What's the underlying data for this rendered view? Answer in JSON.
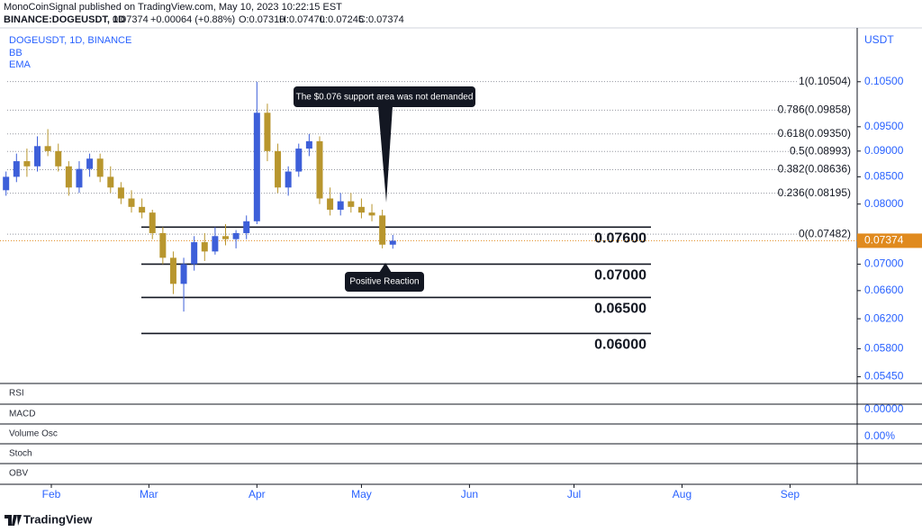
{
  "chart_data": {
    "type": "candlestick",
    "publisher": "MonoCoinSignal published on TradingView.com, May 10, 2023 10:22:15 EST",
    "symbol": "BINANCE:DOGEUSDT, 1D",
    "last": "0.07374",
    "change": "+0.00064 (+0.88%)",
    "ohlc": [
      "O:0.07310",
      "H:0.07470",
      "L:0.07245",
      "C:0.07374"
    ],
    "title": "DOGEUSDT, 1D, BINANCE",
    "overlays": [
      "BB",
      "EMA"
    ],
    "y_unit": "USDT",
    "log_scale": true,
    "up_color": "#3d5fd9",
    "down_color": "#b8962e",
    "x": [
      "2023-01-16",
      "2023-01-19",
      "2023-01-22",
      "2023-01-25",
      "2023-01-28",
      "2023-01-31",
      "2023-02-03",
      "2023-02-06",
      "2023-02-09",
      "2023-02-12",
      "2023-02-15",
      "2023-02-18",
      "2023-02-21",
      "2023-02-24",
      "2023-02-27",
      "2023-03-02",
      "2023-03-05",
      "2023-03-08",
      "2023-03-11",
      "2023-03-14",
      "2023-03-17",
      "2023-03-20",
      "2023-03-23",
      "2023-03-26",
      "2023-03-29",
      "2023-04-01",
      "2023-04-04",
      "2023-04-07",
      "2023-04-10",
      "2023-04-13",
      "2023-04-16",
      "2023-04-19",
      "2023-04-22",
      "2023-04-25",
      "2023-04-28",
      "2023-05-01",
      "2023-05-04",
      "2023-05-07",
      "2023-05-10"
    ],
    "open": [
      0.081,
      0.0825,
      0.085,
      0.088,
      0.087,
      0.091,
      0.09,
      0.087,
      0.083,
      0.0865,
      0.0885,
      0.085,
      0.083,
      0.081,
      0.0795,
      0.0785,
      0.075,
      0.071,
      0.067,
      0.07,
      0.0735,
      0.072,
      0.0745,
      0.074,
      0.075,
      0.077,
      0.098,
      0.09,
      0.083,
      0.086,
      0.0905,
      0.092,
      0.081,
      0.079,
      0.0805,
      0.0795,
      0.0785,
      0.078,
      0.0731
    ],
    "high": [
      0.0835,
      0.086,
      0.0895,
      0.0905,
      0.093,
      0.0945,
      0.0915,
      0.088,
      0.088,
      0.0895,
      0.0895,
      0.087,
      0.084,
      0.0825,
      0.081,
      0.079,
      0.076,
      0.072,
      0.071,
      0.0745,
      0.075,
      0.076,
      0.0765,
      0.0755,
      0.078,
      0.105,
      0.1,
      0.0915,
      0.087,
      0.0915,
      0.0935,
      0.093,
      0.083,
      0.082,
      0.082,
      0.081,
      0.08,
      0.079,
      0.0747
    ],
    "low": [
      0.08,
      0.0815,
      0.084,
      0.085,
      0.086,
      0.089,
      0.086,
      0.0815,
      0.082,
      0.085,
      0.084,
      0.082,
      0.08,
      0.0785,
      0.0775,
      0.074,
      0.07,
      0.0655,
      0.063,
      0.069,
      0.0705,
      0.0715,
      0.073,
      0.0725,
      0.074,
      0.0765,
      0.088,
      0.082,
      0.0815,
      0.085,
      0.089,
      0.08,
      0.078,
      0.078,
      0.0785,
      0.0775,
      0.077,
      0.0725,
      0.07245
    ],
    "close": [
      0.0825,
      0.085,
      0.088,
      0.087,
      0.091,
      0.09,
      0.087,
      0.083,
      0.0865,
      0.0885,
      0.085,
      0.083,
      0.081,
      0.0795,
      0.0785,
      0.075,
      0.071,
      0.067,
      0.07,
      0.0735,
      0.072,
      0.0745,
      0.074,
      0.075,
      0.077,
      0.098,
      0.09,
      0.083,
      0.086,
      0.0905,
      0.092,
      0.081,
      0.079,
      0.0805,
      0.0795,
      0.0785,
      0.078,
      0.0731,
      0.07374
    ],
    "ylim": [
      0.0538,
      0.1174
    ],
    "yticks": [
      {
        "value": 0.105,
        "label": "0.10500"
      },
      {
        "value": 0.095,
        "label": "0.09500"
      },
      {
        "value": 0.09,
        "label": "0.09000"
      },
      {
        "value": 0.085,
        "label": "0.08500"
      },
      {
        "value": 0.08,
        "label": "0.08000"
      },
      {
        "value": 0.07,
        "label": "0.07000"
      },
      {
        "value": 0.066,
        "label": "0.06600"
      },
      {
        "value": 0.062,
        "label": "0.06200"
      },
      {
        "value": 0.058,
        "label": "0.05800"
      },
      {
        "value": 0.0545,
        "label": "0.05450"
      }
    ],
    "xticks": [
      {
        "value": "2023-02-01",
        "label": "Feb"
      },
      {
        "value": "2023-03-01",
        "label": "Mar"
      },
      {
        "value": "2023-04-01",
        "label": "Apr"
      },
      {
        "value": "2023-05-01",
        "label": "May"
      },
      {
        "value": "2023-06-01",
        "label": "Jun"
      },
      {
        "value": "2023-07-01",
        "label": "Jul"
      },
      {
        "value": "2023-08-01",
        "label": "Aug"
      },
      {
        "value": "2023-09-01",
        "label": "Sep"
      }
    ],
    "last_price": {
      "value": 0.07374,
      "label": "0.07374"
    },
    "fib_levels": [
      {
        "value": 0.10504,
        "label": "1(0.10504)"
      },
      {
        "value": 0.09858,
        "label": "0.786(0.09858)"
      },
      {
        "value": 0.0935,
        "label": "0.618(0.09350)"
      },
      {
        "value": 0.08993,
        "label": "0.5(0.08993)"
      },
      {
        "value": 0.08636,
        "label": "0.382(0.08636)"
      },
      {
        "value": 0.08195,
        "label": "0.236(0.08195)"
      },
      {
        "value": 0.07482,
        "label": "0(0.07482)"
      }
    ],
    "levels": [
      {
        "value": 0.076,
        "label": "0.07600"
      },
      {
        "value": 0.07,
        "label": "0.07000"
      },
      {
        "value": 0.065,
        "label": "0.06500"
      },
      {
        "value": 0.06,
        "label": "0.06000"
      }
    ],
    "annotations": [
      "The $0.076 support area was not demanded",
      "Positive Reaction"
    ],
    "panes": [
      "RSI",
      "MACD",
      "Volume Osc",
      "Stoch",
      "OBV"
    ],
    "pane_values": [
      "0.00000",
      "0.00%"
    ],
    "brand": "TradingView"
  }
}
